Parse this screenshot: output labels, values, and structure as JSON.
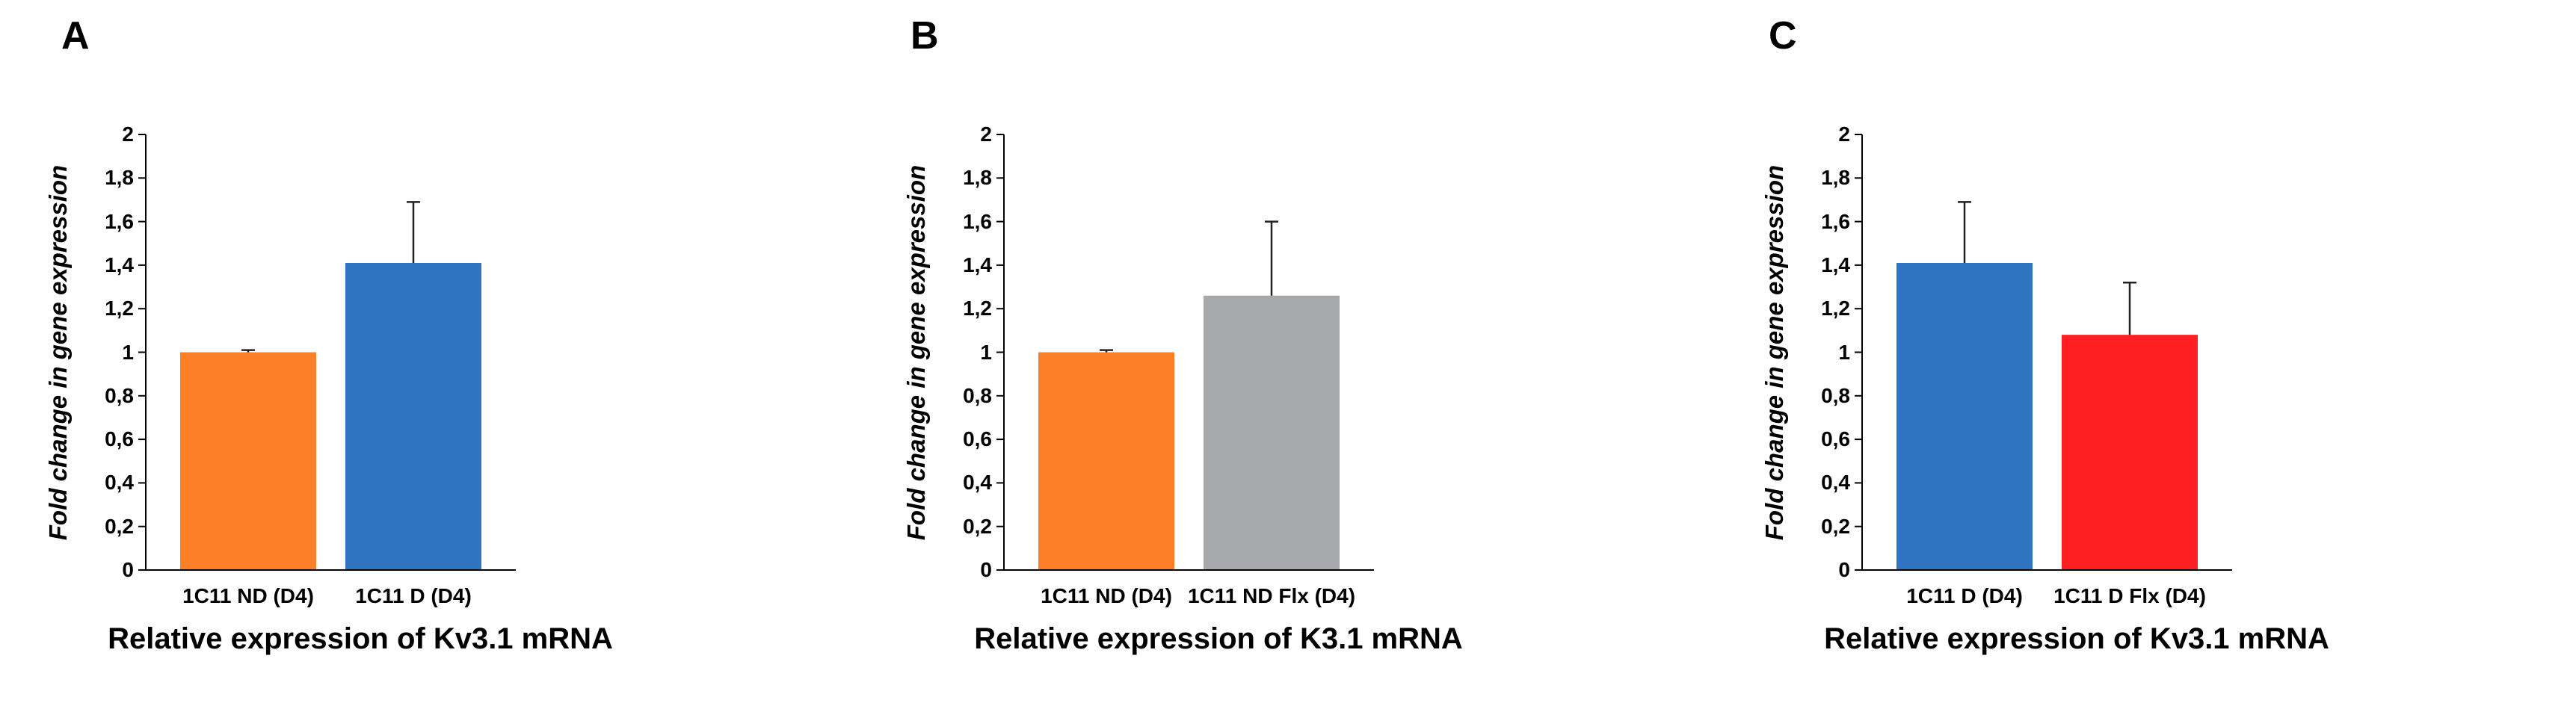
{
  "chart_data": [
    {
      "type": "bar",
      "panel": "A",
      "categories": [
        "1C11 ND (D4)",
        "1C11 D (D4)"
      ],
      "values": [
        1.0,
        1.41
      ],
      "errors": [
        0.01,
        0.28
      ],
      "colors": [
        "#FD7F28",
        "#2E74C0"
      ],
      "title": "",
      "xlabel": "Relative expression of Kv3.1 mRNA",
      "ylabel": "Fold change in gene expression",
      "ylim": [
        0,
        2
      ],
      "yticks": [
        "0",
        "0,2",
        "0,4",
        "0,6",
        "0,8",
        "1",
        "1,2",
        "1,4",
        "1,6",
        "1,8",
        "2"
      ],
      "grid": false
    },
    {
      "type": "bar",
      "panel": "B",
      "categories": [
        "1C11 ND (D4)",
        "1C11 ND Flx (D4)"
      ],
      "values": [
        1.0,
        1.26
      ],
      "errors": [
        0.01,
        0.34
      ],
      "colors": [
        "#FD7F28",
        "#A6A8AB"
      ],
      "title": "",
      "xlabel": "Relative expression of K3.1 mRNA",
      "ylabel": "Fold change in gene expression",
      "ylim": [
        0,
        2
      ],
      "yticks": [
        "0",
        "0,2",
        "0,4",
        "0,6",
        "0,8",
        "1",
        "1,2",
        "1,4",
        "1,6",
        "1,8",
        "2"
      ],
      "grid": false
    },
    {
      "type": "bar",
      "panel": "C",
      "categories": [
        "1C11 D (D4)",
        "1C11 D Flx (D4)"
      ],
      "values": [
        1.41,
        1.08
      ],
      "errors": [
        0.28,
        0.24
      ],
      "colors": [
        "#2E74C0",
        "#FE1F23"
      ],
      "title": "",
      "xlabel": "Relative expression of Kv3.1 mRNA",
      "ylabel": "Fold change in gene expression",
      "ylim": [
        0,
        2
      ],
      "yticks": [
        "0",
        "0,2",
        "0,4",
        "0,6",
        "0,8",
        "1",
        "1,2",
        "1,4",
        "1,6",
        "1,8",
        "2"
      ],
      "grid": false
    }
  ]
}
